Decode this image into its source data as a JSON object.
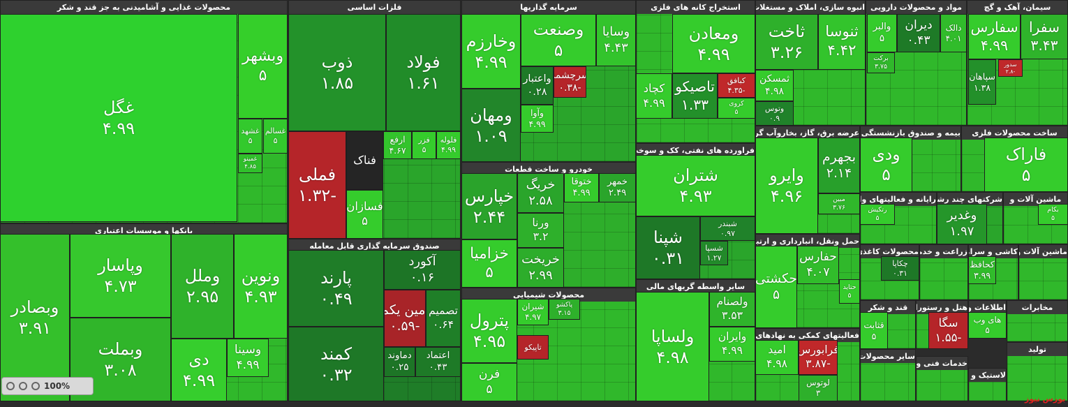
{
  "chart_data": {
    "type": "treemap",
    "sectors": [
      {
        "title": "محصولات غذایی و آشامیدنی به جز قند و شکر",
        "color": "#30b82b",
        "tiles": [
          {
            "name": "غگل",
            "change": "۴.۹۹",
            "color": "#2ed12e"
          },
          {
            "name": "وبشهر",
            "change": "۵",
            "color": "#35cf2a"
          },
          {
            "name": "غشهد",
            "change": "۵",
            "color": "#33c92d"
          },
          {
            "name": "غسالم",
            "change": "۵",
            "color": "#33c92d"
          },
          {
            "name": "غمینو",
            "change": "۴.۸۵",
            "color": "#30c02b"
          }
        ]
      },
      {
        "title": "بانکها و موسسات اعتباری",
        "color": "#30b82b",
        "tiles": [
          {
            "name": "وبصادر",
            "change": "۳.۹۱",
            "color": "#34c02b"
          },
          {
            "name": "وپاسار",
            "change": "۴.۷۳",
            "color": "#36c82d"
          },
          {
            "name": "وبملت",
            "change": "۳.۰۸",
            "color": "#30b52a"
          },
          {
            "name": "وملل",
            "change": "۲.۹۵",
            "color": "#2fb22b"
          },
          {
            "name": "ونوین",
            "change": "۴.۹۳",
            "color": "#35cc2c"
          },
          {
            "name": "دی",
            "change": "۴.۹۹",
            "color": "#36ce2d"
          },
          {
            "name": "وسینا",
            "change": "۴.۹۹",
            "color": "#36ce2d"
          }
        ]
      },
      {
        "title": "فلزات اساسی",
        "color": "#2aa52b",
        "tiles": [
          {
            "name": "ذوب",
            "change": "۱.۸۵",
            "color": "#23922a"
          },
          {
            "name": "فولاد",
            "change": "۱.۶۱",
            "color": "#218c29"
          },
          {
            "name": "فملی",
            "change": "-۱.۳۲",
            "color": "#b52529"
          },
          {
            "name": "فناک",
            "color": "#252525"
          },
          {
            "name": "فسازان",
            "change": "۵",
            "color": "#35cc2c"
          },
          {
            "name": "ارفع",
            "change": "۴.۶۷",
            "color": "#33c42c"
          },
          {
            "name": "فزر",
            "change": "۵",
            "color": "#35cc2c"
          },
          {
            "name": "فلوله",
            "change": "۴.۹۹",
            "color": "#35cc2c"
          }
        ]
      },
      {
        "title": "صندوق سرمایه گذاری قابل معامله",
        "color": "#1f7d28",
        "tiles": [
          {
            "name": "پارند",
            "change": "۰.۴۹",
            "color": "#1f7d28"
          },
          {
            "name": "آکورد",
            "change": "۰.۱۶",
            "color": "#1d7526"
          },
          {
            "name": "امین یکم",
            "change": "-۰.۵۹",
            "color": "#a82428"
          },
          {
            "name": "تصمیم",
            "change": "۰.۶۴",
            "color": "#1f7f28"
          },
          {
            "name": "کمند",
            "change": "۰.۳۲",
            "color": "#1e7827"
          },
          {
            "name": "دماوند",
            "change": "۰.۲۵",
            "color": "#1d7526"
          },
          {
            "name": "اعتماد",
            "change": "۰.۴۳",
            "color": "#1e7a27"
          }
        ]
      },
      {
        "title": "سرمایه گذاریها",
        "color": "#2aa52b",
        "tiles": [
          {
            "name": "وخارزم",
            "change": "۴.۹۹",
            "color": "#35cc2c"
          },
          {
            "name": "وصنعت",
            "change": "۵",
            "color": "#35cc2c"
          },
          {
            "name": "وسایا",
            "change": "۴.۴۳",
            "color": "#33c42c"
          },
          {
            "name": "ومهان",
            "change": "۱.۰۹",
            "color": "#22862a"
          },
          {
            "name": "واعتبار",
            "change": "۰.۲۸",
            "color": "#1e7a27"
          },
          {
            "name": "سرچشمه",
            "change": "-۰.۳۸",
            "color": "#b52529"
          },
          {
            "name": "وآوا",
            "change": "۴.۹۹",
            "color": "#35cc2c"
          }
        ]
      },
      {
        "title": "خودرو و ساخت قطعات",
        "color": "#2eae2b",
        "tiles": [
          {
            "name": "خپارس",
            "change": "۲.۴۴",
            "color": "#2aa32b"
          },
          {
            "name": "خزامیا",
            "change": "۵",
            "color": "#35cc2c"
          },
          {
            "name": "خریگ",
            "change": "۲.۵۸",
            "color": "#2aa52b"
          },
          {
            "name": "ورنا",
            "change": "۳.۲",
            "color": "#2eb02b"
          },
          {
            "name": "خریخت",
            "change": "۲.۹۹",
            "color": "#2dad2b"
          },
          {
            "name": "ختوقا",
            "change": "۴.۹۹",
            "color": "#35cc2c"
          },
          {
            "name": "خمهر",
            "change": "۲.۴۹",
            "color": "#2aa52b"
          }
        ]
      },
      {
        "title": "محصولات شیمیایی",
        "color": "#30b82b",
        "tiles": [
          {
            "name": "پترول",
            "change": "۴.۹۵",
            "color": "#35cc2c"
          },
          {
            "name": "فرن",
            "change": "۵",
            "color": "#35cc2c"
          },
          {
            "name": "شیران",
            "change": "۴.۹۷",
            "color": "#35cc2c"
          },
          {
            "name": "پاکشو",
            "change": "۳.۱۵",
            "color": "#2eb02b"
          },
          {
            "name": "تاپیکو",
            "color": "#b52529"
          }
        ]
      },
      {
        "title": "استخراج کانه های فلزی",
        "color": "#30b82b",
        "tiles": [
          {
            "name": "ومعادن",
            "change": "۴.۹۹",
            "color": "#35cc2c"
          },
          {
            "name": "کچاد",
            "change": "۴.۹۹",
            "color": "#35cc2c"
          },
          {
            "name": "تاصیکو",
            "change": "۱.۳۳",
            "color": "#23902a"
          },
          {
            "name": "کبافق",
            "change": "-۴.۳۵",
            "color": "#c0282a"
          },
          {
            "name": "کروی",
            "change": "۵",
            "color": "#35cc2c"
          }
        ]
      },
      {
        "title": "فراورده های نفتی، کک و سوخت هسته ای",
        "color": "#2aa52b",
        "tiles": [
          {
            "name": "شتران",
            "change": "۴.۹۳",
            "color": "#35cc2c"
          },
          {
            "name": "شپنا",
            "change": "۰.۳۱",
            "color": "#1e7827"
          },
          {
            "name": "شبندر",
            "change": "۰.۹۷",
            "color": "#20822a"
          },
          {
            "name": "شسپا",
            "change": "۱.۲۷",
            "color": "#228a2a"
          }
        ]
      },
      {
        "title": "سایر واسطه گریهای مالی",
        "color": "#30b82b",
        "tiles": [
          {
            "name": "ولساپا",
            "change": "۴.۹۸",
            "color": "#35cc2c"
          },
          {
            "name": "ولصنام",
            "change": "۳.۵۳",
            "color": "#2fb42b"
          },
          {
            "name": "وایران",
            "change": "۴.۹۹",
            "color": "#35cc2c"
          }
        ]
      },
      {
        "title": "انبوه سازی، املاک و مستغلات",
        "color": "#30b82b",
        "tiles": [
          {
            "name": "ثاخت",
            "change": "۳.۲۶",
            "color": "#2eb02b"
          },
          {
            "name": "ثنوسا",
            "change": "۴.۴۲",
            "color": "#33c42c"
          },
          {
            "name": "ثمسکن",
            "change": "۴.۹۸",
            "color": "#35cc2c"
          },
          {
            "name": "وتوس",
            "change": "۰.۹",
            "color": "#20822a"
          }
        ]
      },
      {
        "title": "عرضه برق، گاز، بخاروآب گرم",
        "color": "#30b82b",
        "tiles": [
          {
            "name": "وایرو",
            "change": "۴.۹۶",
            "color": "#35cc2c"
          },
          {
            "name": "بجهرم",
            "change": "۲.۱۴",
            "color": "#28a02b"
          },
          {
            "name": "مبین",
            "change": "۳.۷۶",
            "color": "#30b82b"
          }
        ]
      },
      {
        "title": "حمل ونقل، انبارداری و ارتباطات",
        "color": "#30b82b",
        "tiles": [
          {
            "name": "حکشتی",
            "change": "۵",
            "color": "#35cc2c"
          },
          {
            "name": "حفارس",
            "change": "۴.۰۷",
            "color": "#31bc2b"
          },
          {
            "name": "حتاید",
            "change": "۵",
            "color": "#35cc2c"
          }
        ]
      },
      {
        "title": "فعالیتهای کمکی به نهادهای مالی",
        "color": "#30b82b",
        "tiles": [
          {
            "name": "امید",
            "change": "۴.۹۸",
            "color": "#35cc2c"
          },
          {
            "name": "فرابورس",
            "change": "-۳.۸۷",
            "color": "#c0282a"
          },
          {
            "name": "لوتوس",
            "change": "۳",
            "color": "#2eb02b"
          }
        ]
      },
      {
        "title": "مواد و محصولات دارویی",
        "color": "#30b82b",
        "tiles": [
          {
            "name": "والبر",
            "change": "۵",
            "color": "#35cc2c"
          },
          {
            "name": "دیران",
            "change": "۰.۴۳",
            "color": "#1e7a27"
          },
          {
            "name": "دالک",
            "change": "۴.۰۱",
            "color": "#31bc2b"
          },
          {
            "name": "برکت",
            "change": "۳.۷۵",
            "color": "#30b82b"
          }
        ]
      },
      {
        "title": "سیمان، آهک و گچ",
        "color": "#30b82b",
        "tiles": [
          {
            "name": "سفارس",
            "change": "۴.۹۹",
            "color": "#35cc2c"
          },
          {
            "name": "سفرا",
            "change": "۳.۴۳",
            "color": "#2fb42b"
          },
          {
            "name": "سپاهان",
            "change": "۱.۳۸",
            "color": "#23902a"
          },
          {
            "name": "سدور",
            "change": "-۲.۸",
            "color": "#c0282a"
          }
        ]
      },
      {
        "title": "بیمه و صندوق بازنشستگی به جز تامین",
        "color": "#30b82b",
        "tiles": [
          {
            "name": "ودی",
            "change": "۵",
            "color": "#35cc2c"
          }
        ]
      },
      {
        "title": "ساخت محصولات فلزی",
        "color": "#30b82b",
        "tiles": [
          {
            "name": "فاراک",
            "change": "۵",
            "color": "#35cc2c"
          }
        ]
      },
      {
        "title": "رایانه و فعالیتهای وابسته",
        "color": "#30b82b",
        "tiles": [
          {
            "name": "رتکیش",
            "change": "۵",
            "color": "#35cc2c"
          }
        ]
      },
      {
        "title": "شرکتهای چند رشته ای",
        "color": "#2aa52b",
        "tiles": [
          {
            "name": "وغدیر",
            "change": "۱.۹۷",
            "color": "#25962a"
          }
        ]
      },
      {
        "title": "ماشین آلات و",
        "color": "#30b82b",
        "tiles": [
          {
            "name": "بکام",
            "change": "۵",
            "color": "#35cc2c"
          }
        ]
      },
      {
        "title": "محصولات کاغذی",
        "color": "#30b82b",
        "tiles": [
          {
            "name": "چکاپا",
            "change": "۰.۳۱",
            "color": "#1e7827"
          }
        ]
      },
      {
        "title": "زراعت و خدمات",
        "color": "#30b82b",
        "tiles": []
      },
      {
        "title": "کاشی و سرامیک",
        "color": "#30b82b",
        "tiles": [
          {
            "name": "کحافظ",
            "change": "۳.۹۹",
            "color": "#31bc2b"
          }
        ]
      },
      {
        "title": "ماشین آلات و",
        "color": "#30b82b",
        "tiles": []
      },
      {
        "title": "قند و شکر",
        "color": "#30b82b",
        "tiles": [
          {
            "name": "قثابت",
            "change": "۵",
            "color": "#35cc2c"
          }
        ]
      },
      {
        "title": "هتل و رستوران",
        "color": "#30b82b",
        "tiles": [
          {
            "name": "سگا",
            "change": "-۱.۵۵",
            "color": "#b52529"
          }
        ]
      },
      {
        "title": "اطلاعات و ارتباطات",
        "color": "#30b82b",
        "tiles": [
          {
            "name": "های وب",
            "change": "۵",
            "color": "#35cc2c"
          }
        ]
      },
      {
        "title": "مخابرات",
        "color": "#30b82b",
        "tiles": []
      },
      {
        "title": "سایر محصولات کانی",
        "color": "#30b82b",
        "tiles": []
      },
      {
        "title": "خدمات فنی و",
        "color": "#30b82b",
        "tiles": []
      },
      {
        "title": "لاستیک و پلاستیک",
        "color": "#30b82b",
        "tiles": []
      },
      {
        "title": "تولید",
        "color": "#30b82b",
        "tiles": []
      }
    ]
  },
  "zoom": "100%",
  "watermark": "بورس نیوز"
}
